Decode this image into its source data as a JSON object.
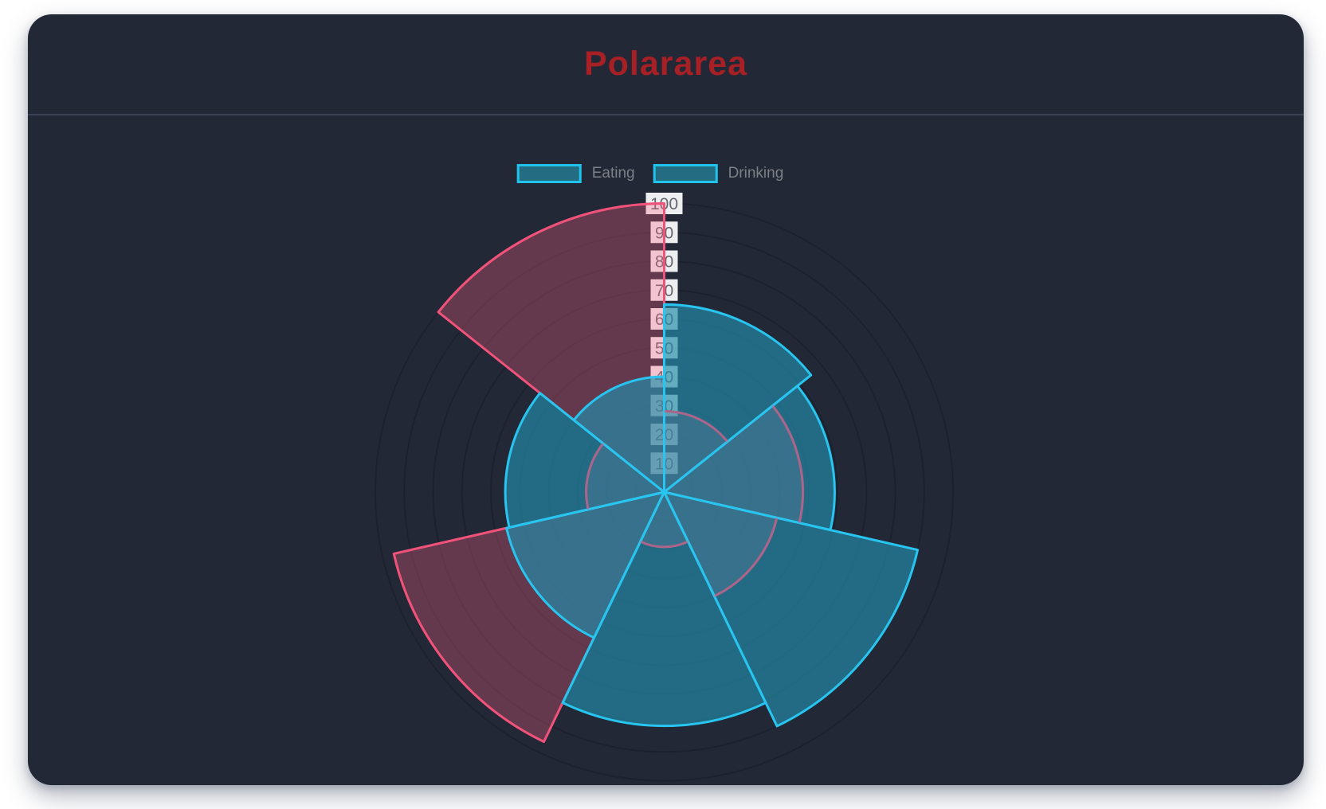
{
  "header": {
    "title": "Polararea"
  },
  "legend": {
    "items": [
      {
        "label": "Eating"
      },
      {
        "label": "Drinking"
      }
    ],
    "swatch": {
      "fill": "#236c82",
      "stroke": "#1fc3ec"
    }
  },
  "chart_data": {
    "type": "polar_area",
    "title": "Polararea",
    "legend_position": "top",
    "start_angle_deg": -90,
    "direction": "clockwise",
    "rlim": [
      0,
      100
    ],
    "ring_step": 10,
    "tick_labels": [
      10,
      20,
      30,
      40,
      50,
      60,
      70,
      80,
      90,
      100
    ],
    "series": [
      {
        "name": "Eating",
        "values": [
          65,
          59,
          90,
          81,
          56,
          55,
          40
        ],
        "fill": "rgba(36,140,170,0.68)",
        "stroke": "#28c5f0"
      },
      {
        "name": "Drinking",
        "values": [
          28,
          48,
          40,
          19,
          96,
          27,
          100
        ],
        "fill": "rgba(255,99,132,0.30)",
        "stroke": "#f1527a"
      }
    ],
    "grid": true,
    "colors": {
      "card_background": "#222836",
      "grid_line": "rgba(0,0,0,0.16)",
      "tick_text": "#63686e",
      "tick_backdrop": "rgba(255,255,255,0.92)",
      "title_color": "#a62025",
      "legend_text": "#7d8084",
      "divider": "#3a4154"
    }
  }
}
